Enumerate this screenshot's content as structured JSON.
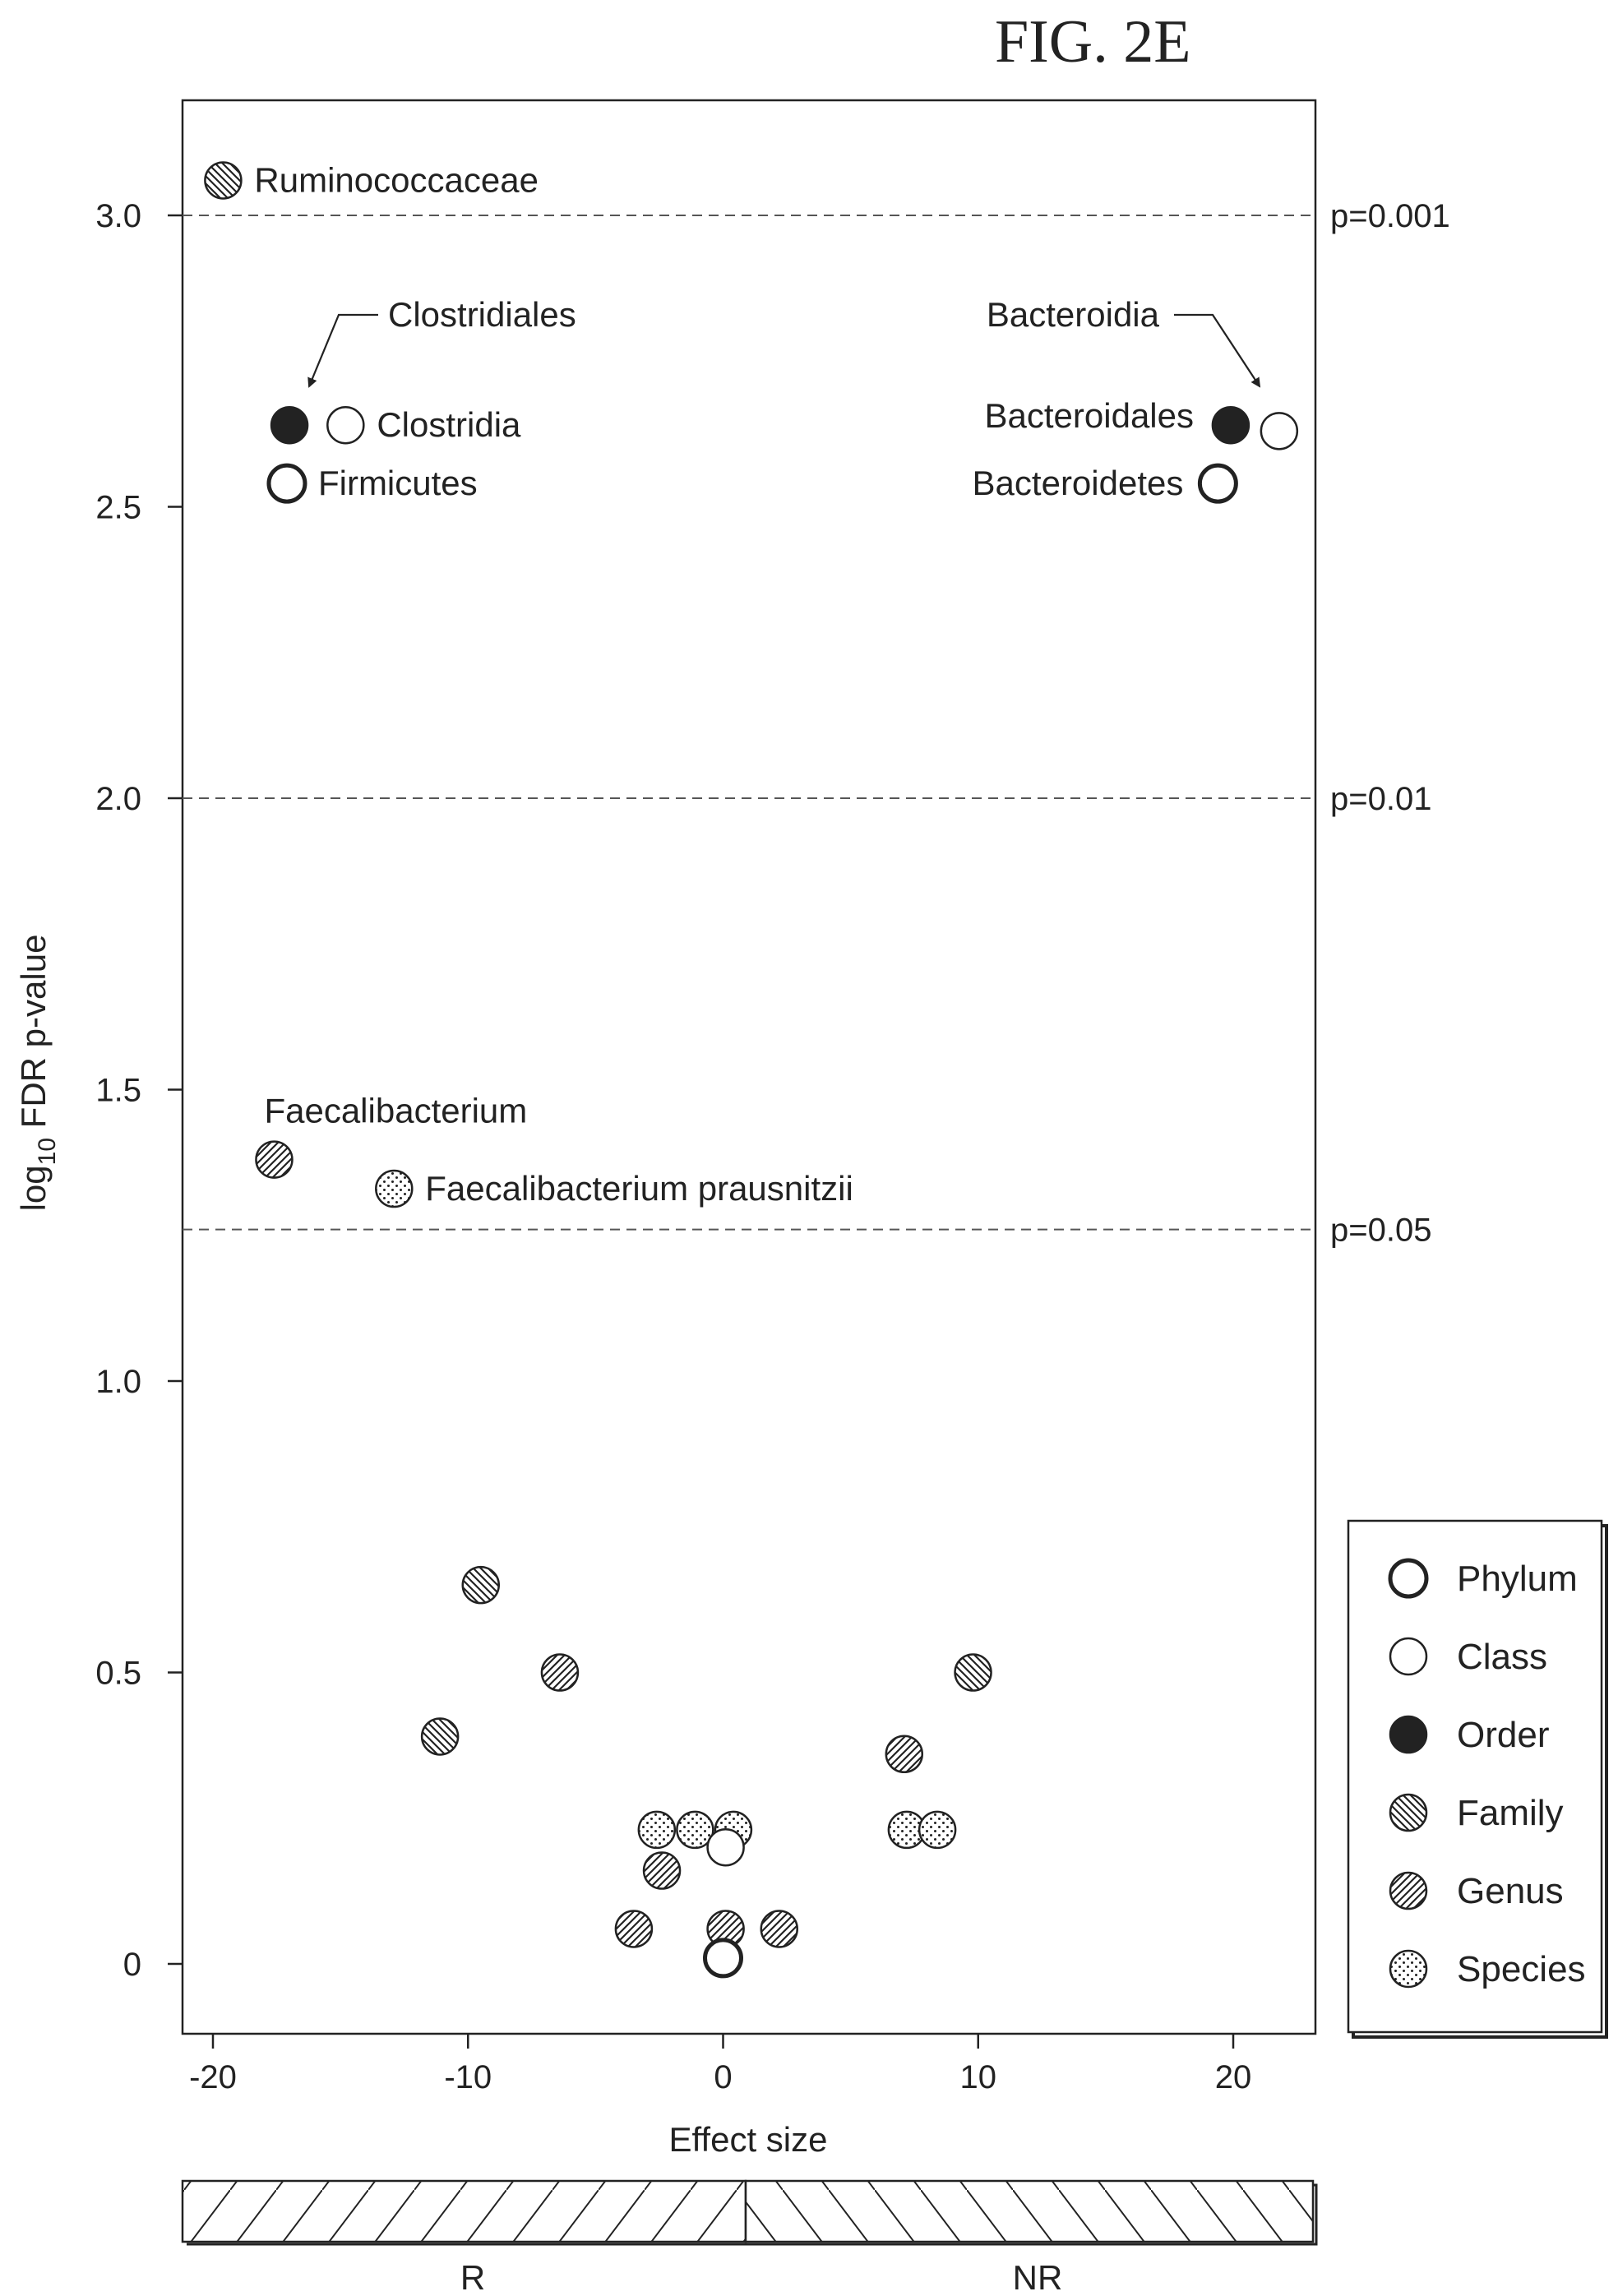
{
  "figure_label": "FIG. 2E",
  "chart_data": {
    "type": "scatter",
    "xlabel": "Effect size",
    "ylabel": {
      "main": "log",
      "subscript": "10",
      "rest": " FDR p-value"
    },
    "xlim": [
      -21,
      23.5
    ],
    "ylim": [
      -0.1,
      3.2
    ],
    "xticks": [
      -20,
      -10,
      0,
      10,
      20
    ],
    "xtick_labels": [
      "-20",
      "-10",
      "0",
      "10",
      "20"
    ],
    "yticks": [
      0,
      0.5,
      1.0,
      1.5,
      2.0,
      2.5,
      3.0
    ],
    "ytick_labels": [
      "0",
      "0.5",
      "1.0",
      "1.5",
      "2.0",
      "2.5",
      "3.0"
    ],
    "thresholds": [
      {
        "y": 3.0,
        "label": "p=0.001"
      },
      {
        "y": 2.0,
        "label": "p=0.01"
      },
      {
        "y": 1.26,
        "label": "p=0.05"
      }
    ],
    "legend": {
      "position": "bottom-right outside",
      "entries": [
        {
          "level": "Phylum",
          "style": "open-thick"
        },
        {
          "level": "Class",
          "style": "open"
        },
        {
          "level": "Order",
          "style": "filled"
        },
        {
          "level": "Family",
          "style": "hatch-back"
        },
        {
          "level": "Genus",
          "style": "hatch-forward"
        },
        {
          "level": "Species",
          "style": "dots"
        }
      ]
    },
    "points": [
      {
        "x": -19.6,
        "y": 3.06,
        "level": "Family",
        "label": "Ruminococcaceae"
      },
      {
        "x": -17.0,
        "y": 2.64,
        "level": "Order",
        "label": ""
      },
      {
        "x": -14.8,
        "y": 2.64,
        "level": "Class",
        "label": "Clostridia"
      },
      {
        "x": -17.1,
        "y": 2.54,
        "level": "Phylum",
        "label": "Firmicutes"
      },
      {
        "x": 19.9,
        "y": 2.64,
        "level": "Order",
        "label": ""
      },
      {
        "x": 21.8,
        "y": 2.63,
        "level": "Class",
        "label": ""
      },
      {
        "x": 19.4,
        "y": 2.54,
        "level": "Phylum",
        "label": "Bacteroidetes"
      },
      {
        "x": -17.6,
        "y": 1.38,
        "level": "Genus",
        "label": "Faecalibacterium"
      },
      {
        "x": -12.9,
        "y": 1.33,
        "level": "Species",
        "label": "Faecalibacterium prausnitzii"
      },
      {
        "x": -9.5,
        "y": 0.65,
        "level": "Family",
        "label": ""
      },
      {
        "x": -6.4,
        "y": 0.5,
        "level": "Genus",
        "label": ""
      },
      {
        "x": -11.1,
        "y": 0.39,
        "level": "Family",
        "label": ""
      },
      {
        "x": 9.8,
        "y": 0.5,
        "level": "Family",
        "label": ""
      },
      {
        "x": 7.1,
        "y": 0.36,
        "level": "Genus",
        "label": ""
      },
      {
        "x": 7.2,
        "y": 0.23,
        "level": "Species",
        "label": ""
      },
      {
        "x": 8.4,
        "y": 0.23,
        "level": "Species",
        "label": ""
      },
      {
        "x": -2.6,
        "y": 0.23,
        "level": "Species",
        "label": ""
      },
      {
        "x": -1.1,
        "y": 0.23,
        "level": "Species",
        "label": ""
      },
      {
        "x": 0.4,
        "y": 0.23,
        "level": "Species",
        "label": ""
      },
      {
        "x": 0.1,
        "y": 0.2,
        "level": "Class",
        "label": ""
      },
      {
        "x": -2.4,
        "y": 0.16,
        "level": "Genus",
        "label": ""
      },
      {
        "x": -3.5,
        "y": 0.06,
        "level": "Genus",
        "label": ""
      },
      {
        "x": 0.1,
        "y": 0.06,
        "level": "Genus",
        "label": ""
      },
      {
        "x": 2.2,
        "y": 0.06,
        "level": "Genus",
        "label": ""
      },
      {
        "x": 0.0,
        "y": 0.01,
        "level": "Phylum",
        "label": ""
      }
    ],
    "callouts": [
      {
        "label": "Clostridiales",
        "target_level": "Order"
      },
      {
        "label": "Bacteroidia",
        "target_level": "Class"
      },
      {
        "label": "Bacteroidales",
        "target_level": "Order"
      }
    ],
    "bottom_bar": {
      "left_label": "R",
      "right_label": "NR"
    }
  }
}
